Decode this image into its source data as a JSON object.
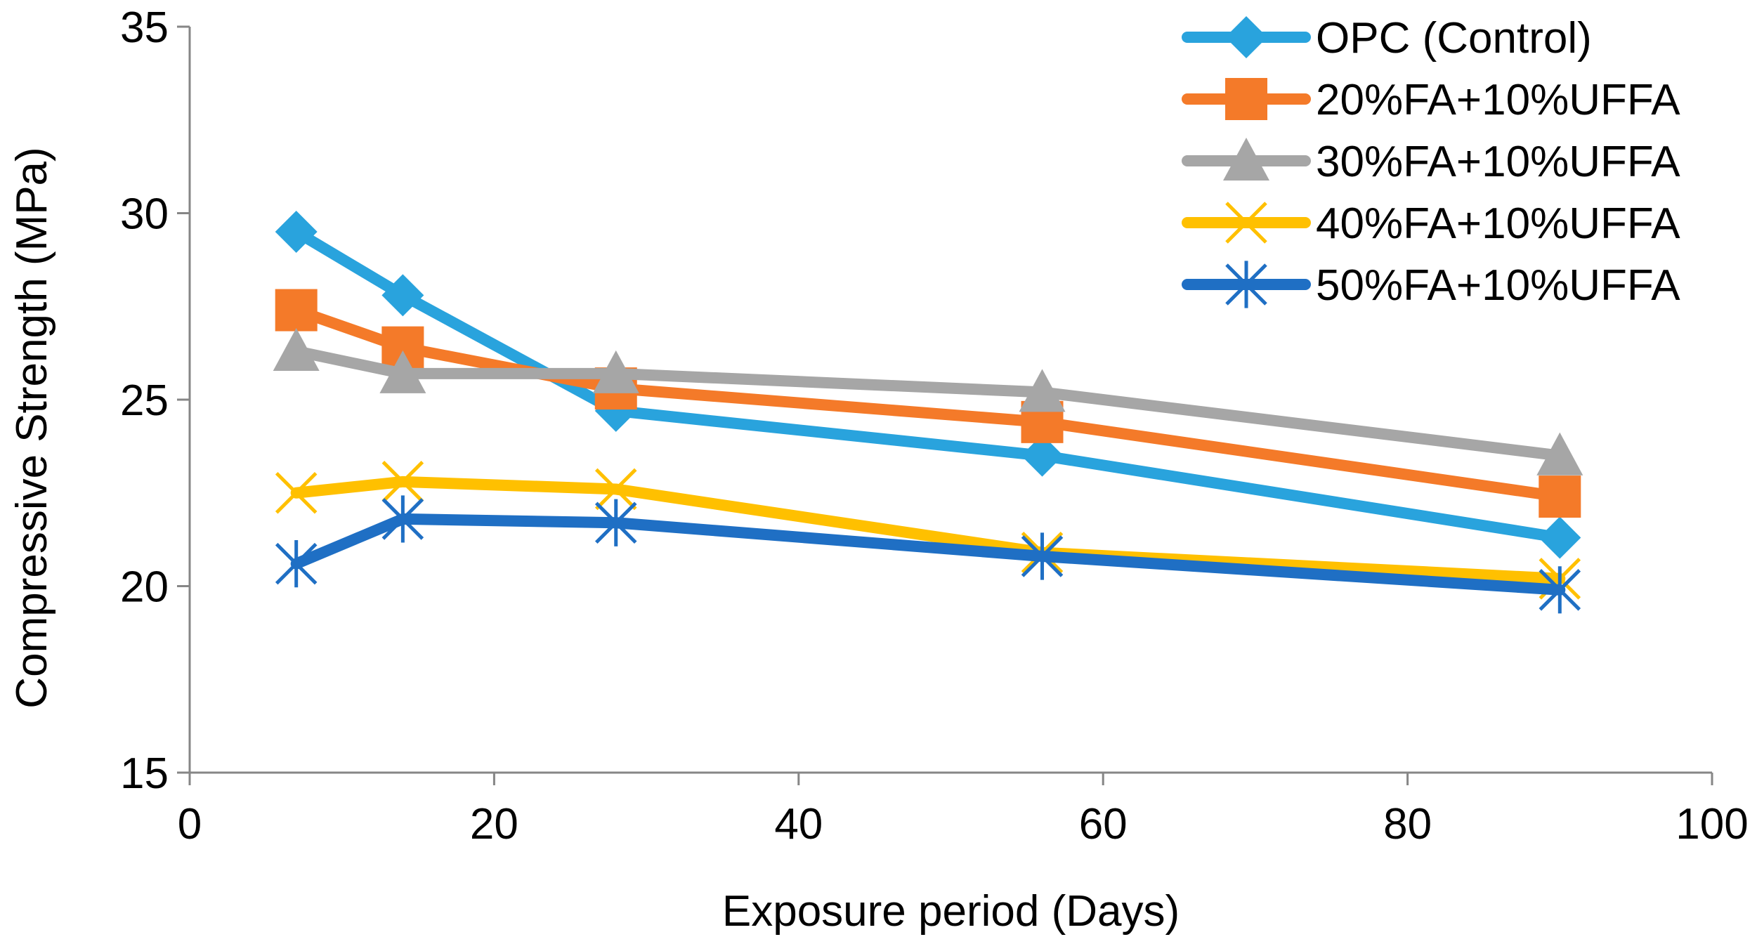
{
  "chart_data": {
    "type": "line",
    "title": "",
    "xlabel": "Exposure period (Days)",
    "ylabel": "Compressive Strength (MPa)",
    "xlim": [
      0,
      100
    ],
    "ylim": [
      15,
      35
    ],
    "xticks": [
      0,
      20,
      40,
      60,
      80,
      100
    ],
    "yticks": [
      15,
      20,
      25,
      30,
      35
    ],
    "grid": false,
    "legend_position": "top-right",
    "x": [
      7,
      14,
      28,
      56,
      90
    ],
    "series": [
      {
        "name": "OPC (Control)",
        "color": "#29A3DD",
        "marker": "diamond",
        "values": [
          29.5,
          27.8,
          24.7,
          23.5,
          21.3
        ]
      },
      {
        "name": "20%FA+10%UFFA",
        "color": "#F47A29",
        "marker": "square",
        "values": [
          27.4,
          26.4,
          25.3,
          24.4,
          22.4
        ]
      },
      {
        "name": "30%FA+10%UFFA",
        "color": "#A6A6A6",
        "marker": "triangle",
        "values": [
          26.3,
          25.7,
          25.7,
          25.2,
          23.5
        ]
      },
      {
        "name": "40%FA+10%UFFA",
        "color": "#FFC000",
        "marker": "x",
        "values": [
          22.5,
          22.8,
          22.6,
          20.9,
          20.2
        ]
      },
      {
        "name": "50%FA+10%UFFA",
        "color": "#1F6FC4",
        "marker": "star",
        "values": [
          20.6,
          21.8,
          21.7,
          20.8,
          19.9
        ]
      }
    ]
  }
}
